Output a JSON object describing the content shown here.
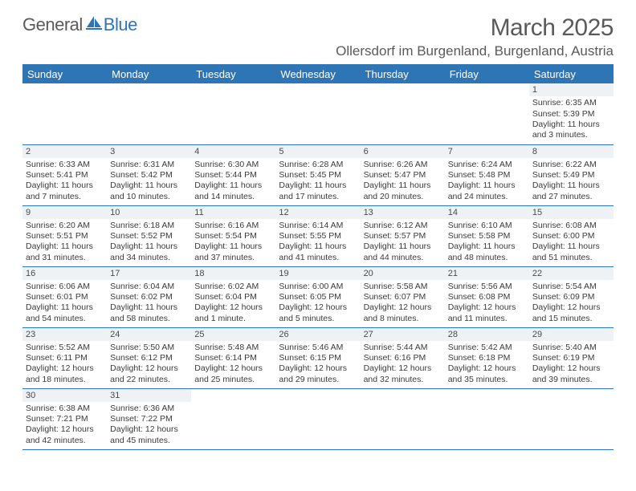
{
  "logo": {
    "general": "General",
    "blue": "Blue"
  },
  "header": {
    "month_title": "March 2025",
    "location": "Ollersdorf im Burgenland, Burgenland, Austria"
  },
  "colors": {
    "accent": "#2e75b6",
    "header_bg": "#2e75b6",
    "header_text": "#ffffff",
    "daynum_bg": "#eef2f5",
    "text": "#3a3a3a",
    "logo_blue": "#2e75b6",
    "logo_gray": "#5a5a5a"
  },
  "weekdays": [
    "Sunday",
    "Monday",
    "Tuesday",
    "Wednesday",
    "Thursday",
    "Friday",
    "Saturday"
  ],
  "days": {
    "1": {
      "sr": "6:35 AM",
      "ss": "5:39 PM",
      "dl": "11 hours and 3 minutes."
    },
    "2": {
      "sr": "6:33 AM",
      "ss": "5:41 PM",
      "dl": "11 hours and 7 minutes."
    },
    "3": {
      "sr": "6:31 AM",
      "ss": "5:42 PM",
      "dl": "11 hours and 10 minutes."
    },
    "4": {
      "sr": "6:30 AM",
      "ss": "5:44 PM",
      "dl": "11 hours and 14 minutes."
    },
    "5": {
      "sr": "6:28 AM",
      "ss": "5:45 PM",
      "dl": "11 hours and 17 minutes."
    },
    "6": {
      "sr": "6:26 AM",
      "ss": "5:47 PM",
      "dl": "11 hours and 20 minutes."
    },
    "7": {
      "sr": "6:24 AM",
      "ss": "5:48 PM",
      "dl": "11 hours and 24 minutes."
    },
    "8": {
      "sr": "6:22 AM",
      "ss": "5:49 PM",
      "dl": "11 hours and 27 minutes."
    },
    "9": {
      "sr": "6:20 AM",
      "ss": "5:51 PM",
      "dl": "11 hours and 31 minutes."
    },
    "10": {
      "sr": "6:18 AM",
      "ss": "5:52 PM",
      "dl": "11 hours and 34 minutes."
    },
    "11": {
      "sr": "6:16 AM",
      "ss": "5:54 PM",
      "dl": "11 hours and 37 minutes."
    },
    "12": {
      "sr": "6:14 AM",
      "ss": "5:55 PM",
      "dl": "11 hours and 41 minutes."
    },
    "13": {
      "sr": "6:12 AM",
      "ss": "5:57 PM",
      "dl": "11 hours and 44 minutes."
    },
    "14": {
      "sr": "6:10 AM",
      "ss": "5:58 PM",
      "dl": "11 hours and 48 minutes."
    },
    "15": {
      "sr": "6:08 AM",
      "ss": "6:00 PM",
      "dl": "11 hours and 51 minutes."
    },
    "16": {
      "sr": "6:06 AM",
      "ss": "6:01 PM",
      "dl": "11 hours and 54 minutes."
    },
    "17": {
      "sr": "6:04 AM",
      "ss": "6:02 PM",
      "dl": "11 hours and 58 minutes."
    },
    "18": {
      "sr": "6:02 AM",
      "ss": "6:04 PM",
      "dl": "12 hours and 1 minute."
    },
    "19": {
      "sr": "6:00 AM",
      "ss": "6:05 PM",
      "dl": "12 hours and 5 minutes."
    },
    "20": {
      "sr": "5:58 AM",
      "ss": "6:07 PM",
      "dl": "12 hours and 8 minutes."
    },
    "21": {
      "sr": "5:56 AM",
      "ss": "6:08 PM",
      "dl": "12 hours and 11 minutes."
    },
    "22": {
      "sr": "5:54 AM",
      "ss": "6:09 PM",
      "dl": "12 hours and 15 minutes."
    },
    "23": {
      "sr": "5:52 AM",
      "ss": "6:11 PM",
      "dl": "12 hours and 18 minutes."
    },
    "24": {
      "sr": "5:50 AM",
      "ss": "6:12 PM",
      "dl": "12 hours and 22 minutes."
    },
    "25": {
      "sr": "5:48 AM",
      "ss": "6:14 PM",
      "dl": "12 hours and 25 minutes."
    },
    "26": {
      "sr": "5:46 AM",
      "ss": "6:15 PM",
      "dl": "12 hours and 29 minutes."
    },
    "27": {
      "sr": "5:44 AM",
      "ss": "6:16 PM",
      "dl": "12 hours and 32 minutes."
    },
    "28": {
      "sr": "5:42 AM",
      "ss": "6:18 PM",
      "dl": "12 hours and 35 minutes."
    },
    "29": {
      "sr": "5:40 AM",
      "ss": "6:19 PM",
      "dl": "12 hours and 39 minutes."
    },
    "30": {
      "sr": "6:38 AM",
      "ss": "7:21 PM",
      "dl": "12 hours and 42 minutes."
    },
    "31": {
      "sr": "6:36 AM",
      "ss": "7:22 PM",
      "dl": "12 hours and 45 minutes."
    }
  },
  "labels": {
    "sunrise": "Sunrise:",
    "sunset": "Sunset:",
    "daylight": "Daylight:"
  },
  "grid": [
    [
      null,
      null,
      null,
      null,
      null,
      null,
      "1"
    ],
    [
      "2",
      "3",
      "4",
      "5",
      "6",
      "7",
      "8"
    ],
    [
      "9",
      "10",
      "11",
      "12",
      "13",
      "14",
      "15"
    ],
    [
      "16",
      "17",
      "18",
      "19",
      "20",
      "21",
      "22"
    ],
    [
      "23",
      "24",
      "25",
      "26",
      "27",
      "28",
      "29"
    ],
    [
      "30",
      "31",
      null,
      null,
      null,
      null,
      null
    ]
  ]
}
